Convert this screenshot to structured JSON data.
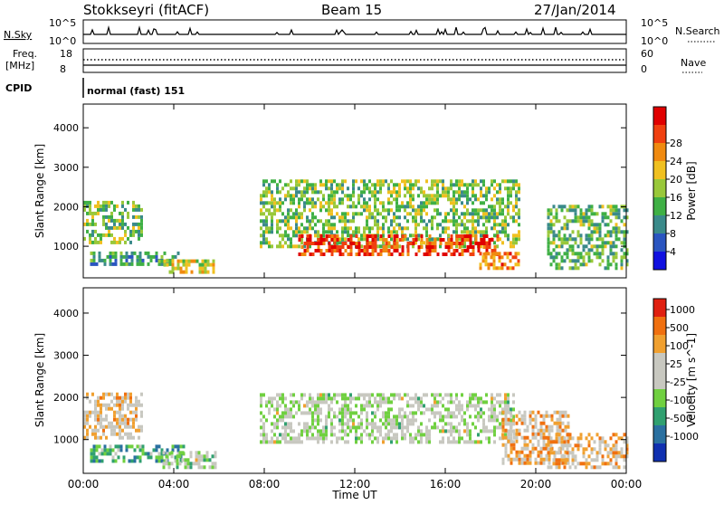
{
  "header": {
    "station": "Stokkseyri (fitACF)",
    "beam": "Beam 15",
    "date": "27/Jan/2014"
  },
  "noise_panel": {
    "left_label": "N.Sky",
    "left_ticks": [
      "10^5",
      "10^0"
    ],
    "right_label": "N.Search",
    "right_ticks": [
      "10^5",
      "10^0"
    ]
  },
  "freq_panel": {
    "left_label_1": "Freq.",
    "left_label_2": "[MHz]",
    "left_ticks": [
      "18",
      "8"
    ],
    "right_label": "Nave",
    "right_ticks": [
      "60",
      "0"
    ]
  },
  "cpid_panel": {
    "label": "CPID",
    "mode": "normal (fast) 151"
  },
  "chart_data": [
    {
      "type": "heatmap",
      "panel": "power",
      "ylabel": "Slant Range [km]",
      "yticks": [
        1000,
        2000,
        3000,
        4000
      ],
      "ylim": [
        200,
        4600
      ],
      "xlim": [
        0,
        24
      ],
      "colorbar": {
        "label": "Power [dB]",
        "ticks": [
          "4",
          "8",
          "12",
          "16",
          "20",
          "24",
          "28"
        ],
        "colors": [
          "#1010e0",
          "#2a55c0",
          "#3a8a8a",
          "#3fb045",
          "#99c83a",
          "#f0c020",
          "#f08a10",
          "#f04010",
          "#e00000"
        ]
      },
      "regions": [
        {
          "t0": 0.0,
          "t1": 2.6,
          "r0": 1050,
          "r1": 2150,
          "level": 0.45
        },
        {
          "t0": 0.3,
          "t1": 4.2,
          "r0": 500,
          "r1": 850,
          "level": 0.3
        },
        {
          "t0": 3.3,
          "t1": 5.8,
          "r0": 300,
          "r1": 650,
          "level": 0.55
        },
        {
          "t0": 7.8,
          "t1": 19.2,
          "r0": 950,
          "r1": 2650,
          "level": 0.45
        },
        {
          "t0": 9.5,
          "t1": 18.3,
          "r0": 750,
          "r1": 1250,
          "level": 0.85
        },
        {
          "t0": 17.5,
          "t1": 19.2,
          "r0": 400,
          "r1": 850,
          "level": 0.75
        },
        {
          "t0": 20.5,
          "t1": 24.0,
          "r0": 400,
          "r1": 2000,
          "level": 0.4
        }
      ]
    },
    {
      "type": "heatmap",
      "panel": "velocity",
      "ylabel": "Slant Range [km]",
      "xlabel": "Time UT",
      "xticks": [
        "00:00",
        "04:00",
        "08:00",
        "12:00",
        "16:00",
        "20:00",
        "00:00"
      ],
      "yticks": [
        1000,
        2000,
        3000,
        4000
      ],
      "ylim": [
        200,
        4600
      ],
      "xlim": [
        0,
        24
      ],
      "colorbar": {
        "label": "Velocity [m s^-1]",
        "ticks": [
          "1000",
          "500",
          "100",
          "25",
          "-25",
          "-100",
          "-500",
          "-1000"
        ],
        "colors": [
          "#1030b0",
          "#2a70a0",
          "#30a070",
          "#70d040",
          "#c8c8c0",
          "#c8c8c0",
          "#f0a030",
          "#f07010",
          "#e02010"
        ]
      },
      "regions": [
        {
          "t0": 0.0,
          "t1": 2.6,
          "r0": 1000,
          "r1": 2100,
          "level": 0.62
        },
        {
          "t0": 0.3,
          "t1": 4.5,
          "r0": 450,
          "r1": 800,
          "level": 0.3
        },
        {
          "t0": 3.5,
          "t1": 5.8,
          "r0": 300,
          "r1": 650,
          "level": 0.5
        },
        {
          "t0": 7.8,
          "t1": 19.0,
          "r0": 900,
          "r1": 2050,
          "level": 0.5
        },
        {
          "t0": 18.5,
          "t1": 21.5,
          "r0": 400,
          "r1": 1650,
          "level": 0.68
        },
        {
          "t0": 20.5,
          "t1": 24.0,
          "r0": 300,
          "r1": 1100,
          "level": 0.68
        }
      ]
    }
  ]
}
